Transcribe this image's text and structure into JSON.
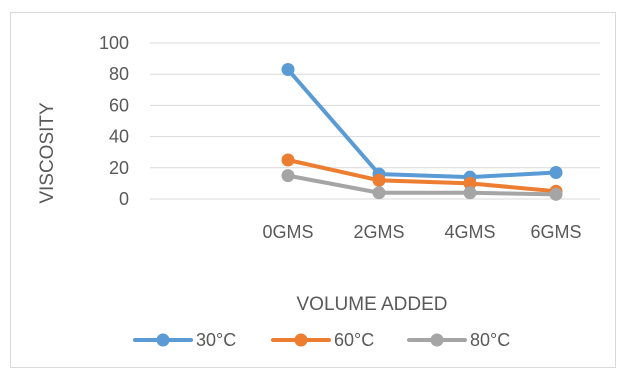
{
  "chart_data": {
    "type": "line",
    "categories": [
      "0GMS",
      "2GMS",
      "4GMS",
      "6GMS"
    ],
    "series": [
      {
        "name": "30°C",
        "color": "#5b9bd5",
        "values": [
          83,
          16,
          14,
          17
        ]
      },
      {
        "name": "60°C",
        "color": "#ed7d31",
        "values": [
          25,
          12,
          10,
          5
        ]
      },
      {
        "name": "80°C",
        "color": "#a5a5a5",
        "values": [
          15,
          4,
          4,
          3
        ]
      }
    ],
    "title": "",
    "xlabel": "VOLUME ADDED",
    "ylabel": "VISCOSITY",
    "ylim": [
      0,
      100
    ],
    "yticks": [
      0,
      20,
      40,
      60,
      80,
      100
    ],
    "grid": true,
    "legend": "bottom"
  }
}
